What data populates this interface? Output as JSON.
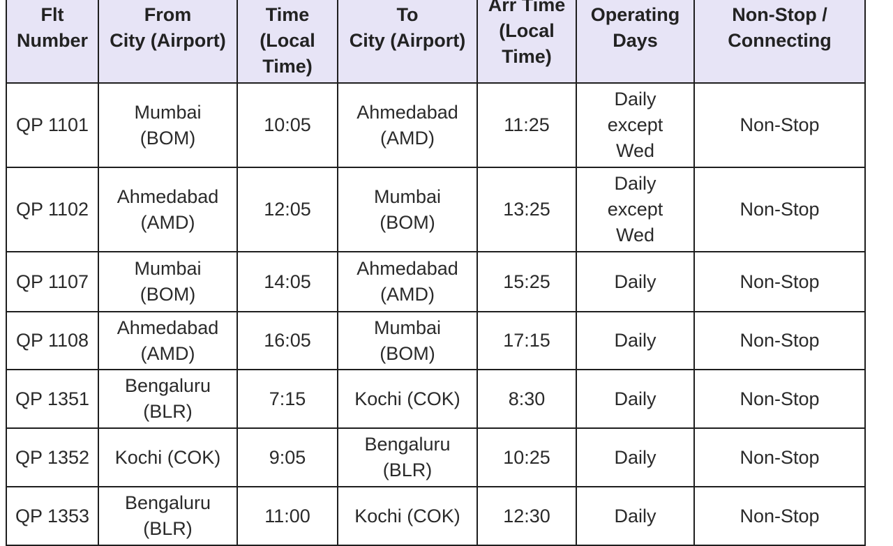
{
  "headers": [
    "Flt\nNumber",
    "From\nCity (Airport)",
    "Time\n(Local\nTime)",
    "To\nCity (Airport)",
    "Arr Time\n(Local\nTime)",
    "Operating\nDays",
    "Non-Stop /\nConnecting"
  ],
  "colors": {
    "header_bg": "#e7e4f6",
    "border": "#1e1e1e"
  },
  "rows": [
    [
      "QP 1101",
      "Mumbai\n(BOM)",
      "10:05",
      "Ahmedabad\n(AMD)",
      "11:25",
      "Daily\nexcept\nWed",
      "Non-Stop"
    ],
    [
      "QP 1102",
      "Ahmedabad\n(AMD)",
      "12:05",
      "Mumbai\n(BOM)",
      "13:25",
      "Daily\nexcept\nWed",
      "Non-Stop"
    ],
    [
      "QP 1107",
      "Mumbai\n(BOM)",
      "14:05",
      "Ahmedabad\n(AMD)",
      "15:25",
      "Daily",
      "Non-Stop"
    ],
    [
      "QP 1108",
      "Ahmedabad\n(AMD)",
      "16:05",
      "Mumbai\n(BOM)",
      "17:15",
      "Daily",
      "Non-Stop"
    ],
    [
      "QP 1351",
      "Bengaluru\n(BLR)",
      "7:15",
      "Kochi (COK)",
      "8:30",
      "Daily",
      "Non-Stop"
    ],
    [
      "QP 1352",
      "Kochi (COK)",
      "9:05",
      "Bengaluru\n(BLR)",
      "10:25",
      "Daily",
      "Non-Stop"
    ],
    [
      "QP 1353",
      "Bengaluru\n(BLR)",
      "11:00",
      "Kochi (COK)",
      "12:30",
      "Daily",
      "Non-Stop"
    ]
  ]
}
